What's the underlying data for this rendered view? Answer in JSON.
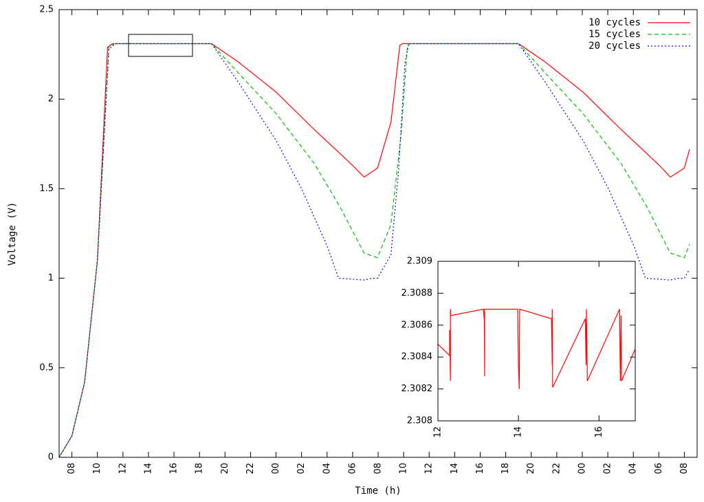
{
  "chart_data": [
    {
      "type": "line",
      "xlabel": "Time (h)",
      "ylabel": "Voltage (V)",
      "legend": "top-right",
      "xlim": [
        7,
        57
      ],
      "ylim": [
        0,
        2.5
      ],
      "yticks": [
        0,
        0.5,
        1,
        1.5,
        2,
        2.5
      ],
      "xticks": [
        {
          "value": 8,
          "label": "08"
        },
        {
          "value": 10,
          "label": "10"
        },
        {
          "value": 12,
          "label": "12"
        },
        {
          "value": 14,
          "label": "14"
        },
        {
          "value": 16,
          "label": "16"
        },
        {
          "value": 18,
          "label": "18"
        },
        {
          "value": 20,
          "label": "20"
        },
        {
          "value": 22,
          "label": "22"
        },
        {
          "value": 24,
          "label": "00"
        },
        {
          "value": 26,
          "label": "02"
        },
        {
          "value": 28,
          "label": "04"
        },
        {
          "value": 30,
          "label": "06"
        },
        {
          "value": 32,
          "label": "08"
        },
        {
          "value": 34,
          "label": "10"
        },
        {
          "value": 36,
          "label": "12"
        },
        {
          "value": 38,
          "label": "14"
        },
        {
          "value": 40,
          "label": "16"
        },
        {
          "value": 42,
          "label": "18"
        },
        {
          "value": 44,
          "label": "20"
        },
        {
          "value": 46,
          "label": "22"
        },
        {
          "value": 48,
          "label": "00"
        },
        {
          "value": 50,
          "label": "02"
        },
        {
          "value": 52,
          "label": "04"
        },
        {
          "value": 54,
          "label": "06"
        },
        {
          "value": 56,
          "label": "08"
        }
      ],
      "series": [
        {
          "name": "10 cycles",
          "color": "#ff0000",
          "dash": "solid",
          "x": [
            7,
            8,
            9,
            10,
            10.8,
            11.2,
            18.95,
            21,
            24,
            27,
            30,
            30.9,
            31.95,
            33.0,
            33.7,
            33.9,
            43.0,
            45.05,
            48.05,
            51.05,
            54.05,
            54.9,
            56.0,
            56.4
          ],
          "values": [
            0,
            0.12,
            0.42,
            1.1,
            2.29,
            2.31,
            2.31,
            2.21,
            2.04,
            1.83,
            1.63,
            1.565,
            1.615,
            1.87,
            2.3,
            2.31,
            2.31,
            2.21,
            2.04,
            1.83,
            1.63,
            1.565,
            1.615,
            1.72
          ]
        },
        {
          "name": "15 cycles",
          "color": "#00c000",
          "dash": "dashed",
          "x": [
            7,
            8,
            9,
            10,
            10.9,
            11.3,
            18.95,
            21,
            24,
            27,
            29,
            30.9,
            31.95,
            33.0,
            33.8,
            34.3,
            34.5,
            43.0,
            45.05,
            48.05,
            51.05,
            53.05,
            54.9,
            56.0,
            56.4
          ],
          "values": [
            0,
            0.12,
            0.42,
            1.1,
            2.29,
            2.31,
            2.31,
            2.15,
            1.92,
            1.64,
            1.4,
            1.14,
            1.115,
            1.3,
            1.8,
            2.3,
            2.31,
            2.31,
            2.15,
            1.92,
            1.64,
            1.4,
            1.14,
            1.115,
            1.19
          ]
        },
        {
          "name": "20 cycles",
          "color": "#0000ff",
          "dash": "dotted",
          "x": [
            7,
            8,
            9,
            10,
            10.9,
            11.4,
            18.95,
            21,
            24,
            26,
            28,
            28.9,
            30.9,
            31.5,
            31.95,
            33.0,
            33.6,
            34.1,
            34.4,
            43.0,
            45.05,
            48.05,
            50.05,
            52.05,
            52.95,
            54.9,
            55.5,
            56.0,
            56.4
          ],
          "values": [
            0,
            0.12,
            0.42,
            1.1,
            2.28,
            2.31,
            2.31,
            2.1,
            1.77,
            1.5,
            1.18,
            1.0,
            0.99,
            1.0,
            1.0,
            1.13,
            1.6,
            2.2,
            2.31,
            2.31,
            2.1,
            1.77,
            1.5,
            1.18,
            1.0,
            0.99,
            1.0,
            1.0,
            1.05
          ]
        }
      ]
    },
    {
      "type": "line",
      "xlim": [
        12,
        16.9
      ],
      "ylim": [
        2.308,
        2.309
      ],
      "xticks": [
        12,
        14,
        16
      ],
      "yticks": [
        2.308,
        2.3082,
        2.3084,
        2.3086,
        2.3088,
        2.309
      ],
      "series": [
        {
          "color": "#ff0000",
          "dash": "solid",
          "x": [
            12.0,
            12.29,
            12.29,
            12.31,
            12.31,
            12.32,
            13.13,
            13.15,
            13.16,
            13.16,
            13.98,
            14.0,
            14.02,
            14.03,
            14.82,
            14.84,
            14.84,
            14.85,
            15.66,
            15.68,
            15.69,
            15.71,
            16.51,
            16.53,
            16.55,
            16.56,
            16.9
          ],
          "values": [
            2.30848,
            2.30841,
            2.30857,
            2.30825,
            2.3087,
            2.30866,
            2.3087,
            2.30863,
            2.30828,
            2.3087,
            2.3087,
            2.30835,
            2.3082,
            2.3087,
            2.30864,
            2.30835,
            2.3087,
            2.30821,
            2.30864,
            2.30835,
            2.3087,
            2.30825,
            2.3087,
            2.30825,
            2.30866,
            2.30825,
            2.30845
          ]
        }
      ]
    }
  ]
}
